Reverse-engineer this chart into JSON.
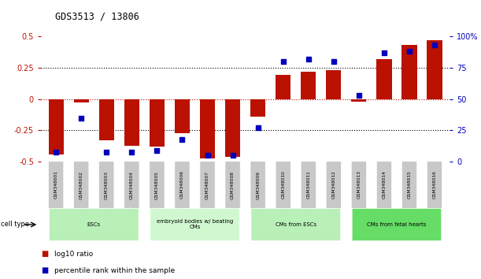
{
  "title": "GDS3513 / 13806",
  "samples": [
    "GSM348001",
    "GSM348002",
    "GSM348003",
    "GSM348004",
    "GSM348005",
    "GSM348006",
    "GSM348007",
    "GSM348008",
    "GSM348009",
    "GSM348010",
    "GSM348011",
    "GSM348012",
    "GSM348013",
    "GSM348014",
    "GSM348015",
    "GSM348016"
  ],
  "log10_ratio": [
    -0.44,
    -0.03,
    -0.33,
    -0.37,
    -0.38,
    -0.27,
    -0.47,
    -0.46,
    -0.14,
    0.19,
    0.22,
    0.23,
    -0.02,
    0.32,
    0.43,
    0.47
  ],
  "percentile_rank": [
    8,
    35,
    8,
    8,
    9,
    18,
    5,
    5,
    27,
    80,
    82,
    80,
    53,
    87,
    88,
    93
  ],
  "cell_type_groups": [
    {
      "label": "ESCs",
      "start": 0,
      "end": 3,
      "color": "#b8f0b8"
    },
    {
      "label": "embryoid bodies w/ beating\nCMs",
      "start": 4,
      "end": 7,
      "color": "#d0f8d0"
    },
    {
      "label": "CMs from ESCs",
      "start": 8,
      "end": 11,
      "color": "#b8f0b8"
    },
    {
      "label": "CMs from fetal hearts",
      "start": 12,
      "end": 15,
      "color": "#66dd66"
    }
  ],
  "bar_color": "#bb1100",
  "dot_color": "#0000bb",
  "ylim_left": [
    -0.5,
    0.5
  ],
  "ylim_right": [
    0,
    100
  ],
  "yticks_left": [
    -0.5,
    -0.25,
    0,
    0.25,
    0.5
  ],
  "yticks_right": [
    0,
    25,
    50,
    75,
    100
  ],
  "bg_color": "#ffffff"
}
